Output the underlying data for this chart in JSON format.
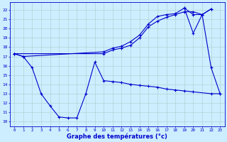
{
  "title": "Graphe des températures (°c)",
  "bg_color": "#cceeff",
  "grid_color": "#aacccc",
  "line_color": "#0000cc",
  "ylim": [
    9.5,
    22.8
  ],
  "xlim": [
    -0.5,
    23.5
  ],
  "yticks": [
    10,
    11,
    12,
    13,
    14,
    15,
    16,
    17,
    18,
    19,
    20,
    21,
    22
  ],
  "xticks": [
    0,
    1,
    2,
    3,
    4,
    5,
    6,
    7,
    8,
    9,
    10,
    11,
    12,
    13,
    14,
    15,
    16,
    17,
    18,
    19,
    20,
    21,
    22,
    23
  ],
  "line1_x": [
    0,
    1,
    10,
    11,
    12,
    13,
    14,
    15,
    16,
    17,
    18,
    19,
    20,
    21,
    22
  ],
  "line1_y": [
    17.3,
    17.0,
    17.5,
    17.9,
    18.1,
    18.6,
    19.3,
    20.5,
    21.3,
    21.5,
    21.6,
    22.2,
    21.5,
    21.5,
    22.1
  ],
  "line2_x": [
    0,
    10,
    11,
    12,
    13,
    14,
    15,
    16,
    17,
    18,
    19,
    20,
    21,
    22
  ],
  "line2_y": [
    17.3,
    17.3,
    17.7,
    17.9,
    18.2,
    19.0,
    20.2,
    20.8,
    21.2,
    21.5,
    21.8,
    21.8,
    21.5,
    22.1
  ],
  "line3_x": [
    0,
    1,
    2,
    3,
    4,
    5,
    6,
    7,
    8,
    9,
    10,
    11,
    12,
    13,
    14,
    15,
    16,
    17,
    18,
    19,
    20,
    22,
    23
  ],
  "line3_y": [
    17.3,
    17.0,
    15.8,
    13.0,
    11.7,
    10.5,
    10.4,
    10.4,
    13.0,
    16.4,
    14.4,
    14.3,
    14.2,
    14.0,
    13.9,
    13.8,
    13.7,
    13.5,
    13.4,
    13.3,
    13.2,
    13.0,
    13.0
  ],
  "line4_x": [
    19,
    20,
    21,
    22,
    23
  ],
  "line4_y": [
    22.2,
    19.5,
    21.5,
    15.8,
    13.0
  ]
}
